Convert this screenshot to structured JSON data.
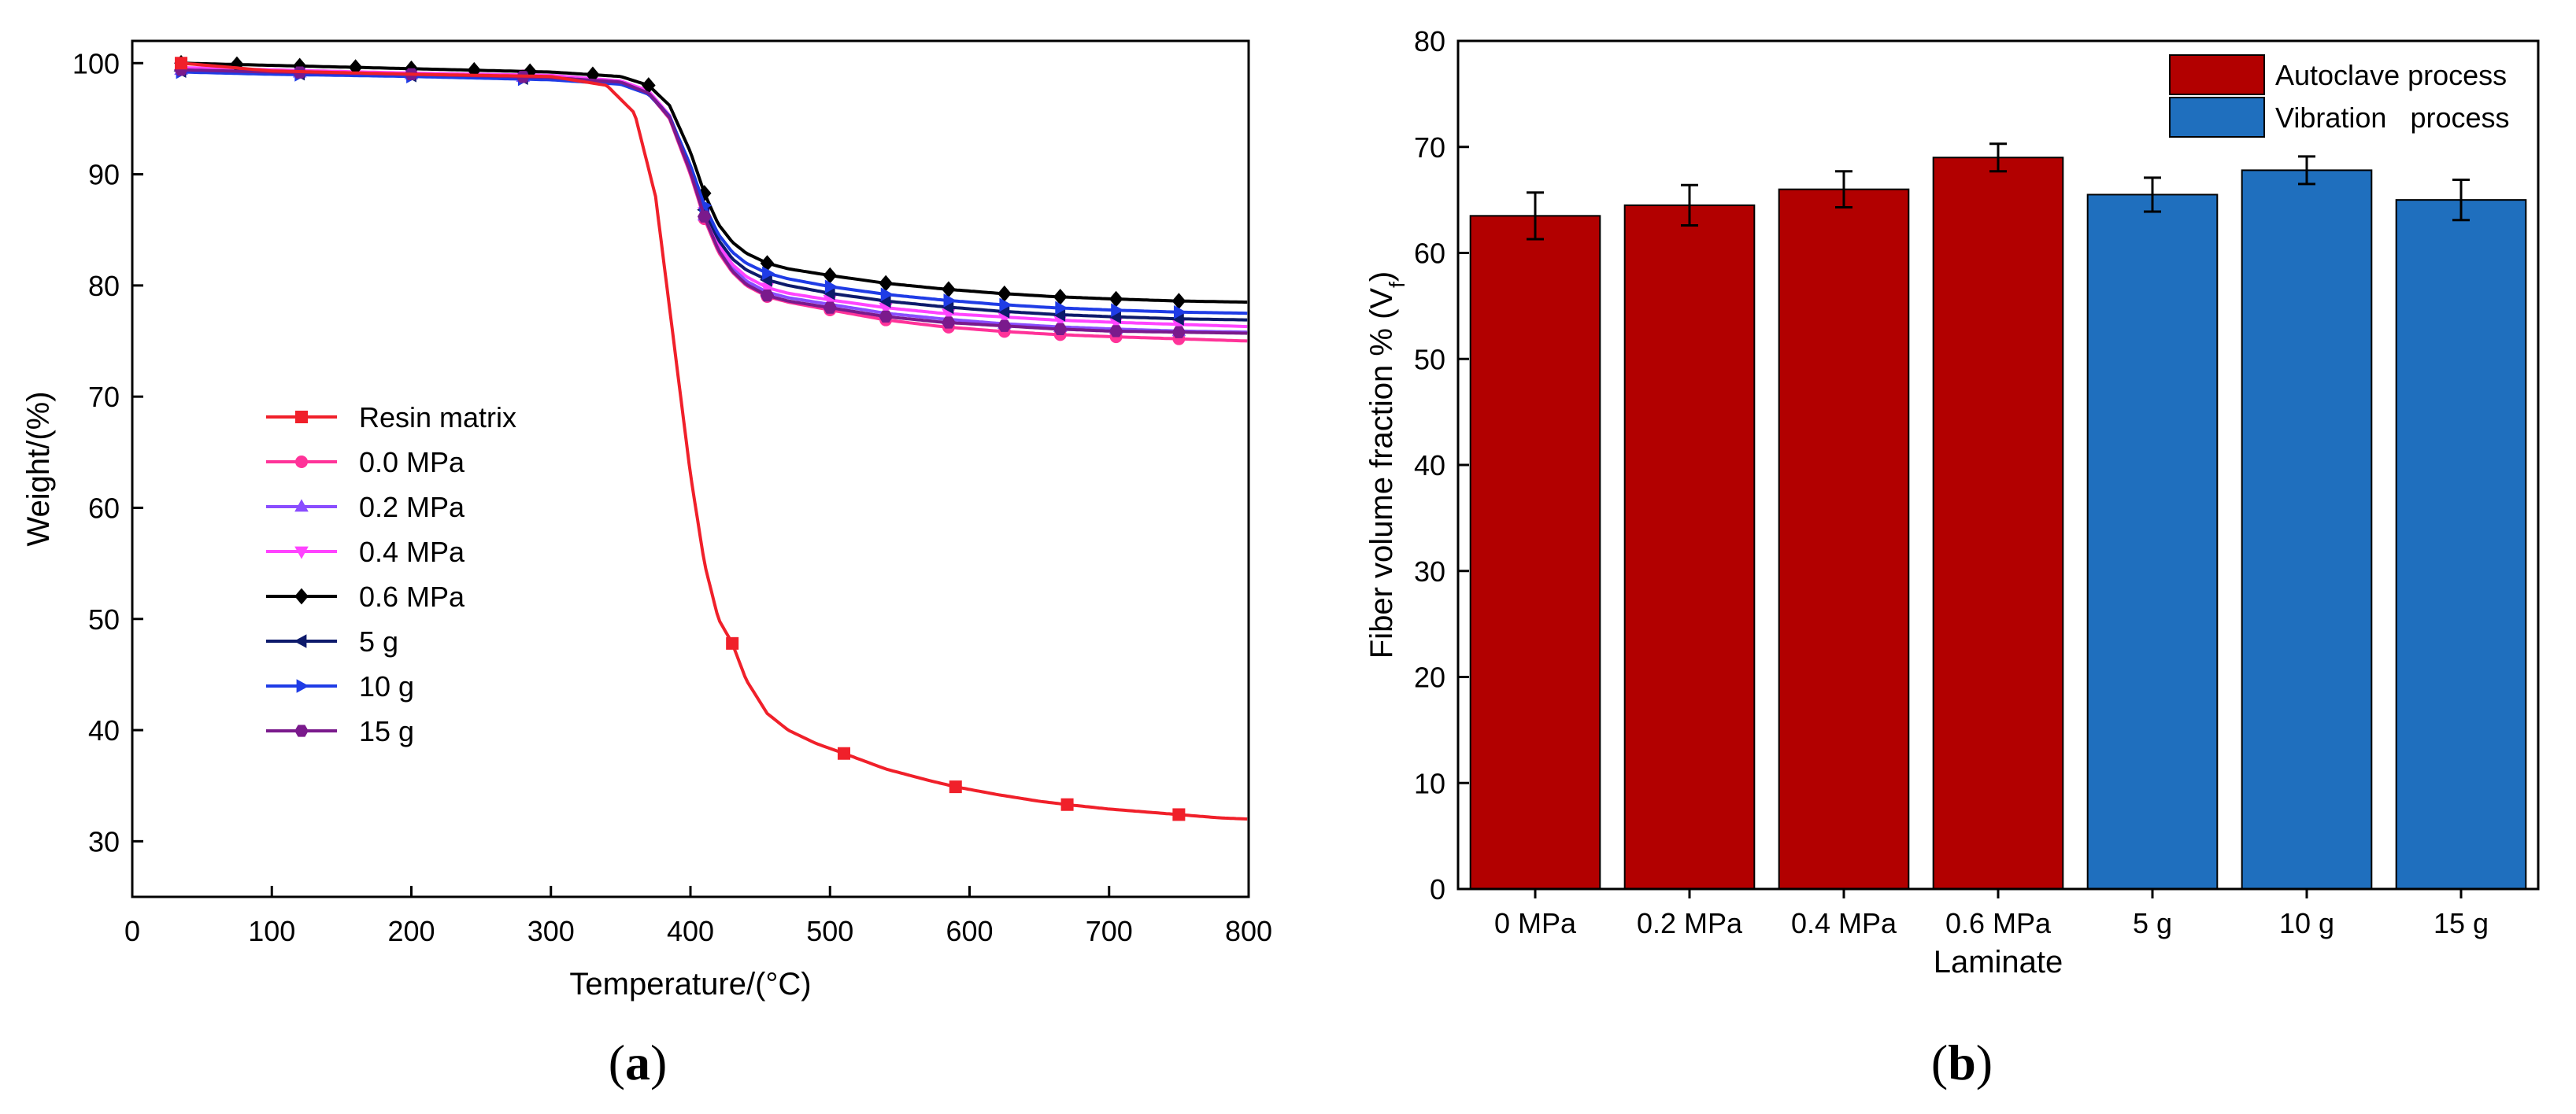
{
  "colors": {
    "resin": "#f0202a",
    "p00": "#ff3399",
    "p02": "#8a4dff",
    "p04": "#ff44ff",
    "p06": "#000000",
    "g5": "#0d1a6b",
    "g10": "#1f3ce6",
    "g15": "#7a1a8c",
    "autoclave": "#b20000",
    "vibration": "#1f6fbe"
  },
  "panel_labels": {
    "a": {
      "open": "(",
      "letter": "a",
      "close": ")"
    },
    "b": {
      "open": "(",
      "letter": "b",
      "close": ")"
    }
  },
  "chart_data": [
    {
      "id": "a",
      "type": "line",
      "title": "",
      "xlabel": "Temperature/(°C)",
      "ylabel": "Weight/(%)",
      "xlim": [
        0,
        800
      ],
      "ylim": [
        25,
        102
      ],
      "xticks": [
        "0",
        "100",
        "200",
        "300",
        "400",
        "500",
        "600",
        "700",
        "800"
      ],
      "yticks": [
        "30",
        "40",
        "50",
        "60",
        "70",
        "80",
        "90",
        "100"
      ],
      "legend_position": "left-middle",
      "series": [
        {
          "name": "Resin matrix",
          "color_key": "resin",
          "marker": "square",
          "x": [
            35,
            100,
            200,
            300,
            340,
            360,
            375,
            390,
            400,
            410,
            420,
            430,
            440,
            455,
            470,
            490,
            510,
            540,
            570,
            590,
            620,
            650,
            670,
            700,
            730,
            750,
            780,
            800
          ],
          "y": [
            100,
            99.3,
            99.0,
            98.8,
            98,
            95.5,
            88,
            73,
            63,
            55,
            50,
            47.8,
            44.5,
            41.5,
            40,
            38.8,
            37.9,
            36.5,
            35.5,
            34.9,
            34.2,
            33.6,
            33.3,
            32.9,
            32.6,
            32.4,
            32.1,
            32.0
          ],
          "marker_x": [
            35,
            430,
            510,
            590,
            670,
            750
          ]
        },
        {
          "name": "0.0 MPa",
          "color_key": "p00",
          "marker": "circle",
          "x": [
            35,
            100,
            200,
            300,
            350,
            370,
            385,
            400,
            410,
            420,
            430,
            440,
            455,
            470,
            500,
            540,
            580,
            620,
            660,
            700,
            750,
            800
          ],
          "y": [
            99.5,
            99.3,
            99.1,
            98.8,
            98.3,
            97.3,
            95,
            90,
            86,
            83,
            81.2,
            80,
            79,
            78.5,
            77.8,
            76.9,
            76.3,
            75.9,
            75.6,
            75.4,
            75.2,
            75.0
          ],
          "marker_x": [
            35,
            120,
            200,
            280,
            410,
            455,
            500,
            540,
            585,
            625,
            665,
            705,
            750
          ]
        },
        {
          "name": "0.2 MPa",
          "color_key": "p02",
          "marker": "triangle-up",
          "x": [
            35,
            100,
            200,
            300,
            350,
            370,
            385,
            400,
            410,
            420,
            430,
            440,
            455,
            470,
            500,
            540,
            580,
            620,
            660,
            700,
            750,
            800
          ],
          "y": [
            99.4,
            99.2,
            99,
            98.7,
            98.3,
            97.4,
            95.2,
            90.3,
            86.3,
            83.4,
            81.6,
            80.4,
            79.4,
            78.9,
            78.3,
            77.5,
            77,
            76.6,
            76.3,
            76.1,
            75.9,
            75.8
          ],
          "marker_x": [
            35,
            120,
            200,
            280,
            410,
            455,
            500,
            540,
            585,
            625,
            665,
            705,
            750
          ]
        },
        {
          "name": "0.4 MPa",
          "color_key": "p04",
          "marker": "triangle-down",
          "x": [
            35,
            100,
            200,
            300,
            350,
            370,
            385,
            400,
            410,
            420,
            430,
            440,
            455,
            470,
            500,
            540,
            580,
            620,
            660,
            700,
            750,
            800
          ],
          "y": [
            99.6,
            99.4,
            99.1,
            98.9,
            98.4,
            97.5,
            95.3,
            90.5,
            86.6,
            83.7,
            81.9,
            80.8,
            79.8,
            79.3,
            78.7,
            78,
            77.5,
            77.2,
            76.9,
            76.7,
            76.5,
            76.3
          ],
          "marker_x": [
            35,
            120,
            200,
            280,
            410,
            455,
            500,
            540,
            585,
            625,
            665,
            705,
            750
          ]
        },
        {
          "name": "0.6 MPa",
          "color_key": "p06",
          "marker": "diamond",
          "x": [
            35,
            100,
            200,
            300,
            350,
            370,
            385,
            400,
            410,
            420,
            430,
            440,
            455,
            470,
            500,
            540,
            580,
            620,
            660,
            700,
            750,
            800
          ],
          "y": [
            100,
            99.8,
            99.5,
            99.2,
            98.8,
            98,
            96.2,
            92,
            88.3,
            85.5,
            83.9,
            82.9,
            82,
            81.5,
            80.9,
            80.2,
            79.7,
            79.3,
            79,
            78.8,
            78.6,
            78.5
          ],
          "marker_x": [
            35,
            75,
            120,
            160,
            200,
            245,
            285,
            330,
            370,
            410,
            455,
            500,
            540,
            585,
            625,
            665,
            705,
            750
          ]
        },
        {
          "name": "5 g",
          "color_key": "g5",
          "marker": "triangle-left",
          "x": [
            35,
            100,
            200,
            300,
            350,
            370,
            385,
            400,
            410,
            420,
            430,
            440,
            455,
            470,
            500,
            540,
            580,
            620,
            660,
            700,
            750,
            800
          ],
          "y": [
            99.3,
            99.1,
            98.9,
            98.6,
            98.2,
            97.3,
            95.2,
            90.6,
            86.8,
            84.1,
            82.4,
            81.4,
            80.5,
            80,
            79.3,
            78.6,
            78.1,
            77.7,
            77.4,
            77.2,
            77,
            76.9
          ],
          "marker_x": [
            35,
            120,
            200,
            280,
            410,
            455,
            500,
            540,
            585,
            625,
            665,
            705,
            750
          ]
        },
        {
          "name": "10 g",
          "color_key": "g10",
          "marker": "triangle-right",
          "x": [
            35,
            100,
            200,
            300,
            350,
            370,
            385,
            400,
            410,
            420,
            430,
            440,
            455,
            470,
            500,
            540,
            580,
            620,
            660,
            700,
            750,
            800
          ],
          "y": [
            99.2,
            99,
            98.8,
            98.5,
            98.1,
            97.2,
            95.2,
            90.8,
            87.2,
            84.6,
            83,
            82,
            81.1,
            80.6,
            79.9,
            79.2,
            78.7,
            78.3,
            78,
            77.8,
            77.6,
            77.5
          ],
          "marker_x": [
            35,
            120,
            200,
            280,
            410,
            455,
            500,
            540,
            585,
            625,
            665,
            705,
            750
          ]
        },
        {
          "name": "15 g",
          "color_key": "g15",
          "marker": "hexagon",
          "x": [
            35,
            100,
            200,
            300,
            350,
            370,
            385,
            400,
            410,
            420,
            430,
            440,
            455,
            470,
            500,
            540,
            580,
            620,
            660,
            700,
            750,
            800
          ],
          "y": [
            99.4,
            99.2,
            99,
            98.7,
            98.3,
            97.3,
            95.1,
            90.2,
            86.2,
            83.2,
            81.3,
            80.1,
            79.1,
            78.6,
            78,
            77.2,
            76.7,
            76.4,
            76.1,
            75.9,
            75.8,
            75.7
          ],
          "marker_x": [
            35,
            120,
            200,
            280,
            410,
            455,
            500,
            540,
            585,
            625,
            665,
            705,
            750
          ]
        }
      ]
    },
    {
      "id": "b",
      "type": "bar",
      "title": "",
      "xlabel": "Laminate",
      "ylabel": "Fiber volume fraction % (V",
      "ylabel_sub": "f",
      "ylabel_close": ")",
      "ylim": [
        0,
        80
      ],
      "yticks": [
        "0",
        "10",
        "20",
        "30",
        "40",
        "50",
        "60",
        "70",
        "80"
      ],
      "categories": [
        "0 MPa",
        "0.2 MPa",
        "0.4 MPa",
        "0.6 MPa",
        "5 g",
        "10 g",
        "15 g"
      ],
      "values": [
        63.5,
        64.5,
        66.0,
        69.0,
        65.5,
        67.8,
        65.0
      ],
      "errors": [
        2.2,
        1.9,
        1.7,
        1.3,
        1.6,
        1.3,
        1.9
      ],
      "groups": [
        "Autoclave process",
        "Autoclave process",
        "Autoclave process",
        "Autoclave process",
        "Vibration   process",
        "Vibration   process",
        "Vibration   process"
      ],
      "legend": [
        {
          "label": "Autoclave process",
          "color_key": "autoclave"
        },
        {
          "label": "Vibration   process",
          "color_key": "vibration"
        }
      ],
      "legend_position": "top-right"
    }
  ]
}
